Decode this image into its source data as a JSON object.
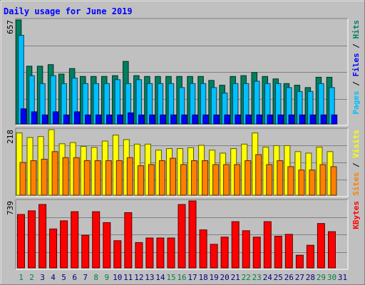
{
  "chart_data": [
    {
      "type": "bar",
      "title": "Daily usage for June 2019",
      "categories": [
        "1",
        "2",
        "3",
        "4",
        "5",
        "6",
        "7",
        "8",
        "9",
        "10",
        "11",
        "12",
        "13",
        "14",
        "15",
        "16",
        "17",
        "18",
        "19",
        "20",
        "21",
        "22",
        "23",
        "24",
        "25",
        "26",
        "27",
        "28",
        "29",
        "30",
        "31"
      ],
      "weekend_days": [
        1,
        2,
        8,
        9,
        15,
        16,
        22,
        23,
        29,
        30
      ],
      "panels": [
        {
          "id": "hits-files-pages",
          "ymax_label": "657",
          "ylim": [
            0,
            657
          ],
          "right_label": [
            {
              "text": "Pages",
              "color": "#00c0ff"
            },
            {
              "text": " / ",
              "color": "#000000"
            },
            {
              "text": "Files",
              "color": "#0000ff"
            },
            {
              "text": " / ",
              "color": "#000000"
            },
            {
              "text": "Hits",
              "color": "#008060"
            }
          ],
          "series": [
            {
              "name": "Hits",
              "color": "#008060",
              "values": [
                657,
                365,
                365,
                375,
                315,
                350,
                300,
                300,
                300,
                305,
                395,
                305,
                300,
                300,
                300,
                300,
                300,
                300,
                275,
                245,
                300,
                305,
                325,
                300,
                285,
                255,
                245,
                230,
                295,
                295,
                0
              ]
            },
            {
              "name": "Files",
              "color": "#00c0ff",
              "values": [
                560,
                305,
                255,
                305,
                255,
                290,
                255,
                255,
                255,
                280,
                255,
                280,
                255,
                255,
                255,
                230,
                255,
                255,
                230,
                195,
                255,
                255,
                270,
                255,
                255,
                230,
                205,
                205,
                255,
                230,
                0
              ]
            },
            {
              "name": "Pages",
              "color": "#0000ff",
              "values": [
                96,
                77,
                57,
                77,
                57,
                77,
                57,
                57,
                57,
                57,
                70,
                57,
                57,
                57,
                57,
                57,
                57,
                57,
                57,
                57,
                57,
                57,
                57,
                57,
                57,
                57,
                57,
                57,
                57,
                57,
                0
              ]
            }
          ]
        },
        {
          "id": "visits-sites",
          "ymax_label": "218",
          "ylim": [
            0,
            218
          ],
          "right_label": [
            {
              "text": "Sites",
              "color": "#ff8000"
            },
            {
              "text": " / ",
              "color": "#000000"
            },
            {
              "text": "Visits",
              "color": "#ffff00"
            }
          ],
          "series": [
            {
              "name": "Visits",
              "color": "#ffff00",
              "values": [
                207,
                192,
                195,
                218,
                171,
                175,
                162,
                159,
                180,
                200,
                185,
                170,
                170,
                150,
                155,
                155,
                158,
                166,
                150,
                140,
                155,
                170,
                207,
                160,
                165,
                165,
                145,
                140,
                160,
                145,
                0
              ]
            },
            {
              "name": "Sites",
              "color": "#ff8000",
              "values": [
                109,
                115,
                120,
                145,
                125,
                125,
                115,
                115,
                115,
                115,
                125,
                98,
                102,
                115,
                123,
                102,
                115,
                115,
                102,
                102,
                102,
                115,
                135,
                102,
                115,
                95,
                84,
                84,
                102,
                95,
                0
              ]
            }
          ]
        },
        {
          "id": "kbytes",
          "ymax_label": "739",
          "ylim": [
            0,
            739
          ],
          "right_label": [
            {
              "text": "KBytes",
              "color": "#ff0000"
            }
          ],
          "series": [
            {
              "name": "KBytes",
              "color": "#ff0000",
              "values": [
                590,
                630,
                700,
                430,
                520,
                620,
                360,
                620,
                500,
                300,
                610,
                280,
                330,
                330,
                330,
                700,
                739,
                420,
                260,
                340,
                510,
                410,
                340,
                510,
                350,
                370,
                140,
                250,
                490,
                400,
                0
              ]
            }
          ]
        }
      ]
    }
  ]
}
